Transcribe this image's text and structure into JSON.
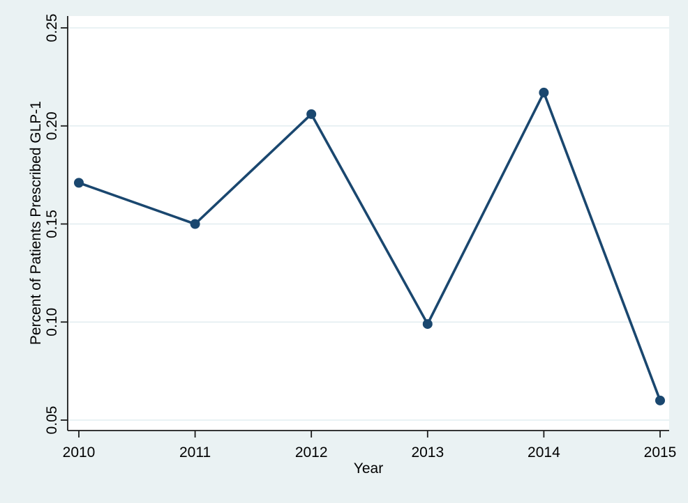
{
  "figure": {
    "background_color": "#eaf2f3",
    "plot_background_color": "#ffffff",
    "gridline_color": "#dce9ed",
    "axis_color": "#1a1a1a",
    "line_color": "#1a476f",
    "marker_color": "#1a476f",
    "text_color": "#000000"
  },
  "chart_data": {
    "type": "line",
    "title": "",
    "xlabel": "Year",
    "ylabel": "Percent of Patients Prescribed GLP-1",
    "x": [
      2010,
      2011,
      2012,
      2013,
      2014,
      2015
    ],
    "series": [
      {
        "name": "Percent of Patients Prescribed GLP-1",
        "values": [
          0.171,
          0.15,
          0.206,
          0.099,
          0.217,
          0.06
        ]
      }
    ],
    "xtick_labels": [
      "2010",
      "2011",
      "2012",
      "2013",
      "2014",
      "2015"
    ],
    "ytick_labels": [
      "0.05",
      "0.10",
      "0.15",
      "0.20",
      "0.25"
    ],
    "ytick_values": [
      0.05,
      0.1,
      0.15,
      0.2,
      0.25
    ],
    "xlim": [
      2009.91,
      2015.08
    ],
    "ylim": [
      0.0447,
      0.2555
    ],
    "grid": "horizontal",
    "legend": "none",
    "marker": "circle",
    "ytick_label_rotation": -90
  }
}
